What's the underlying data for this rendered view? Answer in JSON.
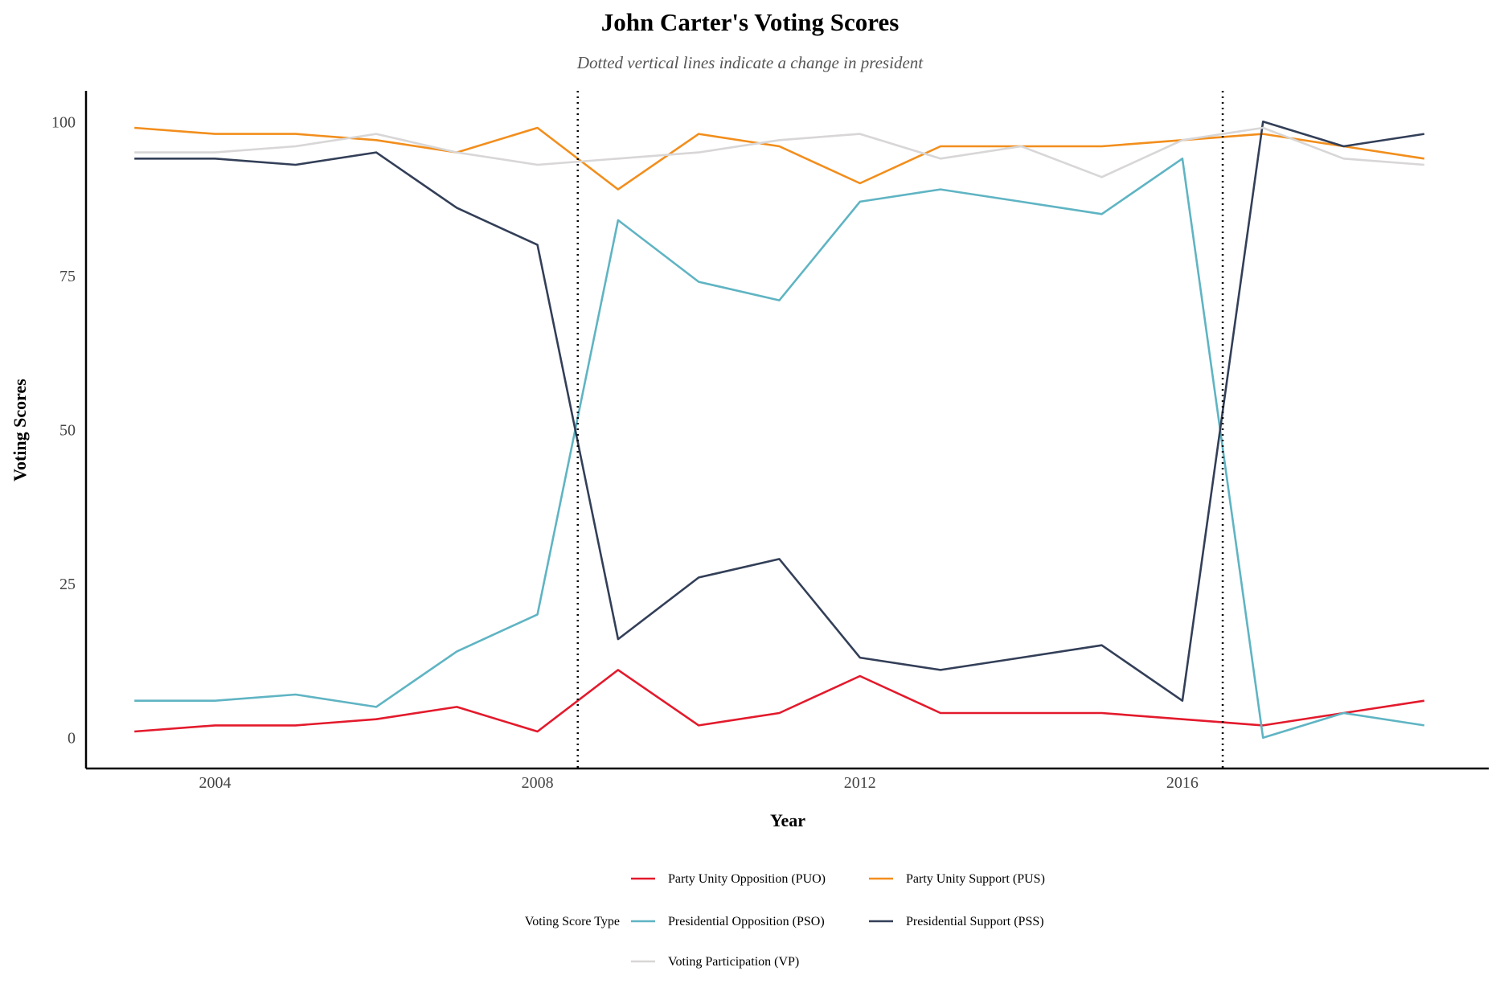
{
  "chart_data": {
    "type": "line",
    "title": "John Carter's Voting Scores",
    "subtitle": "Dotted vertical lines indicate a change in president",
    "xlabel": "Year",
    "ylabel": "Voting Scores",
    "xlim": [
      2002.4,
      2019.8
    ],
    "ylim": [
      -5,
      105
    ],
    "x_ticks": [
      2004,
      2008,
      2012,
      2016
    ],
    "y_ticks": [
      0,
      25,
      50,
      75,
      100
    ],
    "grid": false,
    "vlines": [
      2008.5,
      2016.5
    ],
    "legend": {
      "title": "Voting Score Type",
      "placement": "bottom"
    },
    "x": [
      2003,
      2004,
      2005,
      2006,
      2007,
      2008,
      2009,
      2010,
      2011,
      2012,
      2013,
      2014,
      2015,
      2016,
      2017,
      2018,
      2019
    ],
    "series": [
      {
        "name": "Party Unity Opposition (PUO)",
        "color": "#e31a2c",
        "values": [
          1,
          2,
          2,
          3,
          5,
          1,
          11,
          2,
          4,
          10,
          4,
          4,
          4,
          3,
          2,
          4,
          6
        ]
      },
      {
        "name": "Party Unity Support (PUS)",
        "color": "#f28e1c",
        "values": [
          99,
          98,
          98,
          97,
          95,
          99,
          89,
          98,
          96,
          90,
          96,
          96,
          96,
          97,
          98,
          96,
          94
        ]
      },
      {
        "name": "Presidential Opposition (PSO)",
        "color": "#5fb4c3",
        "values": [
          6,
          6,
          7,
          5,
          14,
          20,
          84,
          74,
          71,
          87,
          89,
          87,
          85,
          94,
          0,
          4,
          2
        ]
      },
      {
        "name": "Presidential Support (PSS)",
        "color": "#333f58",
        "values": [
          94,
          94,
          93,
          95,
          86,
          80,
          16,
          26,
          29,
          13,
          11,
          13,
          15,
          6,
          100,
          96,
          98
        ]
      },
      {
        "name": "Voting Participation (VP)",
        "color": "#d8d6d6",
        "values": [
          95,
          95,
          96,
          98,
          95,
          93,
          94,
          95,
          97,
          98,
          94,
          96,
          91,
          97,
          99,
          94,
          93
        ]
      }
    ]
  }
}
